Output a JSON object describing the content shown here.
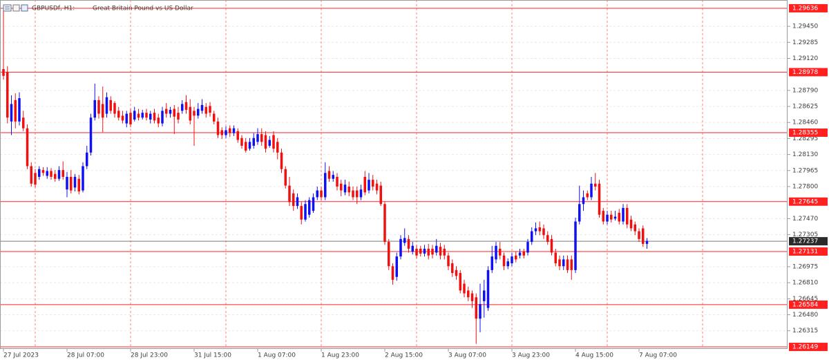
{
  "chart_data": {
    "type": "candlestick",
    "symbol": "GBPUSDf, H1:",
    "description": "Great Britain Pound vs US Dollar",
    "up_color": "#1010f0",
    "down_color": "#f01010",
    "level_color": "#ff2020",
    "current_price": 1.27237,
    "levels": [
      1.29636,
      1.28978,
      1.28355,
      1.27645,
      1.27131,
      1.26584,
      1.26149
    ],
    "ylim": [
      1.26128,
      1.29721
    ],
    "yticks": [
      1.26315,
      {
        "value": 1.2648,
        "label": "1.26480"
      },
      1.26645,
      {
        "value": 1.2681,
        "label": "1.26810"
      },
      1.26975,
      1.27305,
      {
        "value": 1.2747,
        "label": "1.27470"
      },
      {
        "value": 1.278,
        "label": "1.27800"
      },
      1.27965,
      {
        "value": 1.2813,
        "label": "1.28130"
      },
      1.28295,
      {
        "value": 1.2846,
        "label": "1.28460"
      },
      1.28625,
      {
        "value": 1.2879,
        "label": "1.28790"
      },
      {
        "value": 1.2912,
        "label": "1.29120"
      },
      1.29285,
      {
        "value": 1.2945,
        "label": "1.29450"
      }
    ],
    "grid": true,
    "x": [
      "27 Jul 2023",
      null,
      null,
      null,
      null,
      null,
      null,
      null,
      null,
      null,
      null,
      null,
      null,
      null,
      null,
      null,
      "28 Jul 07:00",
      null,
      null,
      null,
      null,
      null,
      null,
      null,
      null,
      null,
      null,
      null,
      null,
      null,
      null,
      null,
      "28 Jul 23:00",
      null,
      null,
      null,
      null,
      null,
      null,
      null,
      null,
      null,
      null,
      null,
      null,
      null,
      null,
      null,
      "31 Jul 15:00",
      null,
      null,
      null,
      null,
      null,
      null,
      null,
      null,
      null,
      null,
      null,
      null,
      null,
      null,
      null,
      "1 Aug 07:00",
      null,
      null,
      null,
      null,
      null,
      null,
      null,
      null,
      null,
      null,
      null,
      null,
      null,
      null,
      null,
      "1 Aug 23:00",
      null,
      null,
      null,
      null,
      null,
      null,
      null,
      null,
      null,
      null,
      null,
      null,
      null,
      null,
      null,
      "2 Aug 15:00",
      null,
      null,
      null,
      null,
      null,
      null,
      null,
      null,
      null,
      null,
      null,
      null,
      null,
      null,
      null,
      "3 Aug 07:00",
      null,
      null,
      null,
      null,
      null,
      null,
      null,
      null,
      null,
      null,
      null,
      null,
      null,
      null,
      null,
      "3 Aug 23:00",
      null,
      null,
      null,
      null,
      null,
      null,
      null,
      null,
      null,
      null,
      null,
      null,
      null,
      null,
      null,
      "4 Aug 15:00",
      null,
      null,
      null,
      null,
      null,
      null,
      null,
      null,
      null,
      null,
      null,
      null,
      null,
      null,
      null,
      "7 Aug 07:00",
      null,
      null
    ],
    "ohlc": [
      [
        1.2901,
        1.2963,
        1.289,
        1.2894
      ],
      [
        1.2898,
        1.2904,
        1.2845,
        1.2851
      ],
      [
        1.2847,
        1.2874,
        1.2833,
        1.2865
      ],
      [
        1.2869,
        1.2876,
        1.284,
        1.2847
      ],
      [
        1.2847,
        1.2877,
        1.2843,
        1.2871
      ],
      [
        1.2851,
        1.2858,
        1.2837,
        1.284
      ],
      [
        1.284,
        1.2844,
        1.2798,
        1.2801
      ],
      [
        1.2801,
        1.2805,
        1.278,
        1.2783
      ],
      [
        1.2794,
        1.2798,
        1.2779,
        1.2782
      ],
      [
        1.279,
        1.2801,
        1.2787,
        1.2798
      ],
      [
        1.2797,
        1.28,
        1.2791,
        1.2794
      ],
      [
        1.2791,
        1.28,
        1.2788,
        1.2796
      ],
      [
        1.2796,
        1.2799,
        1.2787,
        1.279
      ],
      [
        1.2793,
        1.2797,
        1.2785,
        1.2788
      ],
      [
        1.2788,
        1.2801,
        1.2786,
        1.2797
      ],
      [
        1.2797,
        1.2806,
        1.2787,
        1.279
      ],
      [
        1.2777,
        1.2795,
        1.2769,
        1.279
      ],
      [
        1.279,
        1.2797,
        1.2773,
        1.2776
      ],
      [
        1.2779,
        1.2793,
        1.2775,
        1.279
      ],
      [
        1.2788,
        1.2792,
        1.2772,
        1.2775
      ],
      [
        1.2776,
        1.2805,
        1.2774,
        1.2801
      ],
      [
        1.2801,
        1.2822,
        1.2798,
        1.2815
      ],
      [
        1.2815,
        1.2855,
        1.2812,
        1.2851
      ],
      [
        1.2851,
        1.2886,
        1.2848,
        1.2869
      ],
      [
        1.2869,
        1.2873,
        1.285,
        1.2855
      ],
      [
        1.2865,
        1.2883,
        1.2836,
        1.2851
      ],
      [
        1.2855,
        1.2877,
        1.2851,
        1.2872
      ],
      [
        1.2869,
        1.2873,
        1.2855,
        1.2858
      ],
      [
        1.2866,
        1.2868,
        1.2851,
        1.2855
      ],
      [
        1.2858,
        1.2862,
        1.2848,
        1.2851
      ],
      [
        1.2853,
        1.2858,
        1.2845,
        1.2848
      ],
      [
        1.2845,
        1.2858,
        1.2841,
        1.2855
      ],
      [
        1.2856,
        1.286,
        1.2841,
        1.2844
      ],
      [
        1.2849,
        1.2862,
        1.2847,
        1.2858
      ],
      [
        1.2855,
        1.286,
        1.2848,
        1.2851
      ],
      [
        1.2851,
        1.2859,
        1.2849,
        1.2856
      ],
      [
        1.2856,
        1.286,
        1.2848,
        1.2851
      ],
      [
        1.2849,
        1.2858,
        1.2845,
        1.2855
      ],
      [
        1.2856,
        1.286,
        1.2845,
        1.2848
      ],
      [
        1.2851,
        1.2855,
        1.2841,
        1.2845
      ],
      [
        1.2845,
        1.2862,
        1.2842,
        1.2858
      ],
      [
        1.286,
        1.2866,
        1.2851,
        1.2855
      ],
      [
        1.2855,
        1.2862,
        1.2851,
        1.2859
      ],
      [
        1.286,
        1.2864,
        1.2834,
        1.2852
      ],
      [
        1.2856,
        1.2862,
        1.2845,
        1.2849
      ],
      [
        1.2858,
        1.2869,
        1.2855,
        1.2865
      ],
      [
        1.2867,
        1.2874,
        1.2855,
        1.2859
      ],
      [
        1.2862,
        1.287,
        1.2844,
        1.2848
      ],
      [
        1.2858,
        1.2862,
        1.2822,
        1.2853
      ],
      [
        1.2853,
        1.2866,
        1.285,
        1.286
      ],
      [
        1.2858,
        1.287,
        1.2855,
        1.2864
      ],
      [
        1.2862,
        1.2866,
        1.2851,
        1.2855
      ],
      [
        1.2863,
        1.2867,
        1.2852,
        1.2856
      ],
      [
        1.2855,
        1.2858,
        1.2844,
        1.2847
      ],
      [
        1.2847,
        1.2851,
        1.283,
        1.2833
      ],
      [
        1.2838,
        1.2841,
        1.2829,
        1.2833
      ],
      [
        1.2833,
        1.2842,
        1.283,
        1.2838
      ],
      [
        1.284,
        1.2843,
        1.2831,
        1.2835
      ],
      [
        1.2835,
        1.2843,
        1.2832,
        1.284
      ],
      [
        1.2837,
        1.284,
        1.2825,
        1.2828
      ],
      [
        1.283,
        1.2833,
        1.2819,
        1.2822
      ],
      [
        1.2826,
        1.283,
        1.2815,
        1.2817
      ],
      [
        1.2819,
        1.283,
        1.2817,
        1.2826
      ],
      [
        1.2822,
        1.2835,
        1.2819,
        1.283
      ],
      [
        1.2826,
        1.284,
        1.2823,
        1.2834
      ],
      [
        1.2834,
        1.284,
        1.2822,
        1.2826
      ],
      [
        1.2833,
        1.2837,
        1.2815,
        1.2819
      ],
      [
        1.2822,
        1.2832,
        1.282,
        1.2828
      ],
      [
        1.2833,
        1.2837,
        1.2815,
        1.2819
      ],
      [
        1.2826,
        1.283,
        1.2808,
        1.2815
      ],
      [
        1.2815,
        1.2819,
        1.2794,
        1.2798
      ],
      [
        1.2798,
        1.2801,
        1.2778,
        1.2781
      ],
      [
        1.2781,
        1.279,
        1.276,
        1.2764
      ],
      [
        1.2773,
        1.2777,
        1.2755,
        1.276
      ],
      [
        1.276,
        1.2773,
        1.2757,
        1.2769
      ],
      [
        1.276,
        1.2764,
        1.2741,
        1.2746
      ],
      [
        1.2746,
        1.2766,
        1.2744,
        1.2762
      ],
      [
        1.2751,
        1.2769,
        1.2748,
        1.2766
      ],
      [
        1.2755,
        1.2773,
        1.2753,
        1.2769
      ],
      [
        1.2769,
        1.278,
        1.2766,
        1.2776
      ],
      [
        1.2776,
        1.278,
        1.2766,
        1.2769
      ],
      [
        1.2769,
        1.2805,
        1.2766,
        1.2794
      ],
      [
        1.2796,
        1.2801,
        1.2785,
        1.2788
      ],
      [
        1.2788,
        1.2796,
        1.2785,
        1.2792
      ],
      [
        1.279,
        1.2794,
        1.2776,
        1.278
      ],
      [
        1.2783,
        1.2787,
        1.277,
        1.2776
      ],
      [
        1.2774,
        1.2787,
        1.2771,
        1.2782
      ],
      [
        1.278,
        1.2785,
        1.277,
        1.2774
      ],
      [
        1.2776,
        1.278,
        1.2766,
        1.2769
      ],
      [
        1.2776,
        1.278,
        1.2762,
        1.2769
      ],
      [
        1.2769,
        1.2782,
        1.2766,
        1.2777
      ],
      [
        1.279,
        1.2796,
        1.2771,
        1.2774
      ],
      [
        1.2776,
        1.2794,
        1.2773,
        1.2787
      ],
      [
        1.2787,
        1.2792,
        1.2776,
        1.278
      ],
      [
        1.2783,
        1.2787,
        1.2772,
        1.2776
      ],
      [
        1.2781,
        1.2785,
        1.276,
        1.2762
      ],
      [
        1.2762,
        1.2764,
        1.272,
        1.2723
      ],
      [
        1.2723,
        1.2726,
        1.2694,
        1.2698
      ],
      [
        1.2698,
        1.2701,
        1.2679,
        1.2684
      ],
      [
        1.2687,
        1.2712,
        1.2683,
        1.2708
      ],
      [
        1.2708,
        1.273,
        1.2705,
        1.2726
      ],
      [
        1.2722,
        1.2737,
        1.2719,
        1.2727
      ],
      [
        1.2726,
        1.273,
        1.2712,
        1.2716
      ],
      [
        1.2713,
        1.2723,
        1.271,
        1.2719
      ],
      [
        1.2716,
        1.272,
        1.2706,
        1.2709
      ],
      [
        1.2716,
        1.2719,
        1.2708,
        1.2711
      ],
      [
        1.2711,
        1.272,
        1.2708,
        1.2716
      ],
      [
        1.2716,
        1.2721,
        1.2705,
        1.2709
      ],
      [
        1.2716,
        1.272,
        1.2706,
        1.271
      ],
      [
        1.2712,
        1.2726,
        1.2709,
        1.2719
      ],
      [
        1.2718,
        1.2722,
        1.2705,
        1.2709
      ],
      [
        1.2716,
        1.272,
        1.2705,
        1.2709
      ],
      [
        1.2709,
        1.2712,
        1.2694,
        1.2698
      ],
      [
        1.2701,
        1.2705,
        1.2687,
        1.2691
      ],
      [
        1.2694,
        1.2698,
        1.2684,
        1.2688
      ],
      [
        1.2691,
        1.2694,
        1.267,
        1.2673
      ],
      [
        1.268,
        1.2684,
        1.2666,
        1.267
      ],
      [
        1.2673,
        1.2677,
        1.2662,
        1.2666
      ],
      [
        1.267,
        1.2673,
        1.2655,
        1.2662
      ],
      [
        1.2666,
        1.267,
        1.2618,
        1.2644
      ],
      [
        1.2644,
        1.268,
        1.263,
        1.2659
      ],
      [
        1.2662,
        1.2684,
        1.2645,
        1.2673
      ],
      [
        1.2655,
        1.2698,
        1.2652,
        1.2694
      ],
      [
        1.2694,
        1.2719,
        1.2691,
        1.2708
      ],
      [
        1.2705,
        1.2723,
        1.2701,
        1.2719
      ],
      [
        1.2716,
        1.2723,
        1.2705,
        1.2709
      ],
      [
        1.2709,
        1.2712,
        1.2694,
        1.2698
      ],
      [
        1.2698,
        1.2706,
        1.2695,
        1.2703
      ],
      [
        1.2701,
        1.2712,
        1.2698,
        1.2708
      ],
      [
        1.2709,
        1.2713,
        1.2702,
        1.2705
      ],
      [
        1.2709,
        1.2716,
        1.2706,
        1.2712
      ],
      [
        1.2713,
        1.2716,
        1.2706,
        1.2709
      ],
      [
        1.2712,
        1.2726,
        1.2709,
        1.2723
      ],
      [
        1.2723,
        1.2738,
        1.272,
        1.2734
      ],
      [
        1.2734,
        1.2743,
        1.273,
        1.2737
      ],
      [
        1.2738,
        1.2744,
        1.273,
        1.2734
      ],
      [
        1.2737,
        1.2741,
        1.2726,
        1.273
      ],
      [
        1.273,
        1.2734,
        1.272,
        1.2723
      ],
      [
        1.2726,
        1.273,
        1.2709,
        1.2712
      ],
      [
        1.2712,
        1.2716,
        1.2698,
        1.2701
      ],
      [
        1.2705,
        1.2709,
        1.2694,
        1.2698
      ],
      [
        1.2698,
        1.2709,
        1.2694,
        1.2705
      ],
      [
        1.2705,
        1.2709,
        1.2691,
        1.2694
      ],
      [
        1.2705,
        1.2709,
        1.2684,
        1.2694
      ],
      [
        1.2694,
        1.2748,
        1.2691,
        1.2744
      ],
      [
        1.2744,
        1.2781,
        1.2741,
        1.2762
      ],
      [
        1.2762,
        1.2776,
        1.2755,
        1.2769
      ],
      [
        1.2773,
        1.2776,
        1.2766,
        1.2769
      ],
      [
        1.2769,
        1.279,
        1.2766,
        1.2783
      ],
      [
        1.2783,
        1.2794,
        1.2776,
        1.278
      ],
      [
        1.2783,
        1.2787,
        1.2748,
        1.2751
      ],
      [
        1.2755,
        1.2758,
        1.2741,
        1.2744
      ],
      [
        1.2744,
        1.2755,
        1.2741,
        1.2751
      ],
      [
        1.2751,
        1.2755,
        1.2743,
        1.2746
      ],
      [
        1.2747,
        1.2755,
        1.2745,
        1.2749
      ],
      [
        1.2753,
        1.2757,
        1.2741,
        1.2744
      ],
      [
        1.2744,
        1.2762,
        1.2741,
        1.2758
      ],
      [
        1.2758,
        1.2762,
        1.2737,
        1.2741
      ],
      [
        1.2746,
        1.275,
        1.2734,
        1.2737
      ],
      [
        1.2741,
        1.2744,
        1.273,
        1.2734
      ],
      [
        1.2734,
        1.2737,
        1.2723,
        1.2726
      ],
      [
        1.2737,
        1.274,
        1.2718,
        1.2721
      ],
      [
        1.2721,
        1.2727,
        1.2716,
        1.2724
      ]
    ]
  }
}
